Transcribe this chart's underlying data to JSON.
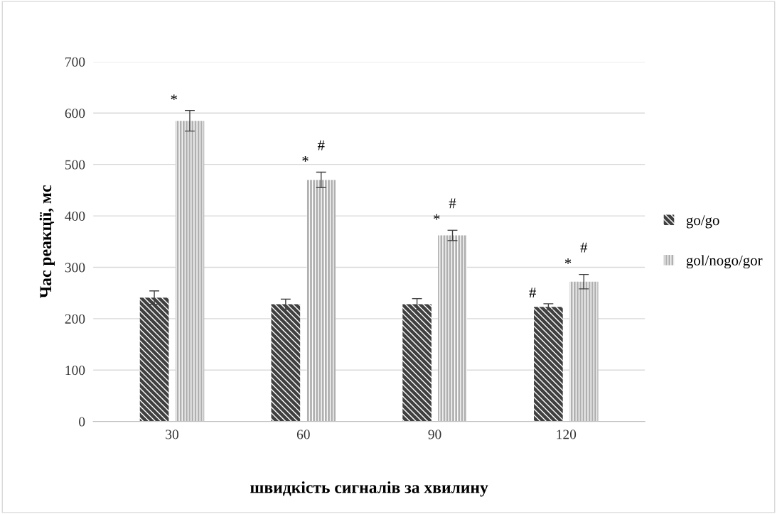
{
  "chart_data": {
    "type": "bar",
    "xlabel": "швидкість сигналів за хвилину",
    "ylabel": "Час реакції, мс",
    "categories": [
      "30",
      "60",
      "90",
      "120"
    ],
    "series": [
      {
        "name": "go/go",
        "color": "#404040",
        "values": [
          241,
          228,
          228,
          223
        ],
        "errors": [
          13,
          10,
          11,
          6
        ]
      },
      {
        "name": "gol/nogo/gor",
        "color": "#b0b0b0",
        "values": [
          585,
          470,
          362,
          272
        ],
        "errors": [
          20,
          15,
          10,
          14
        ]
      }
    ],
    "ylim": [
      0,
      700
    ],
    "yticks": [
      0,
      100,
      200,
      300,
      400,
      500,
      600,
      700
    ],
    "grid": "y",
    "legend": "right",
    "annotations": [
      {
        "text": "*",
        "x": "30",
        "y": 585
      },
      {
        "text": "*",
        "x": "60",
        "y": 470
      },
      {
        "text": "#",
        "x": "60",
        "y": 470
      },
      {
        "text": "*",
        "x": "90",
        "y": 362
      },
      {
        "text": "#",
        "x": "90",
        "y": 362
      },
      {
        "text": "#",
        "x": "120",
        "y": 223
      },
      {
        "text": "*",
        "x": "120",
        "y": 272
      },
      {
        "text": "#",
        "x": "120",
        "y": 272
      }
    ]
  }
}
